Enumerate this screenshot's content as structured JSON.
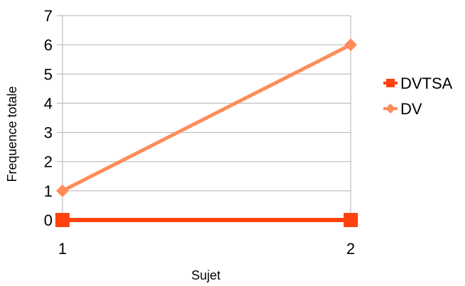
{
  "chart_data": {
    "type": "line",
    "title": "",
    "xlabel": "Sujet",
    "ylabel": "Frequence totale",
    "x": [
      1,
      2
    ],
    "x_ticks": [
      "1",
      "2"
    ],
    "y_ticks": [
      "0",
      "1",
      "2",
      "3",
      "4",
      "5",
      "6",
      "7"
    ],
    "ylim": [
      0,
      7
    ],
    "grid": true,
    "legend_position": "right",
    "series": [
      {
        "name": "DVTSA",
        "values": [
          0,
          0
        ],
        "color": "#ff420e",
        "marker": "square"
      },
      {
        "name": "DV",
        "values": [
          1,
          6
        ],
        "color": "#ff8c5a",
        "marker": "diamond"
      }
    ]
  }
}
